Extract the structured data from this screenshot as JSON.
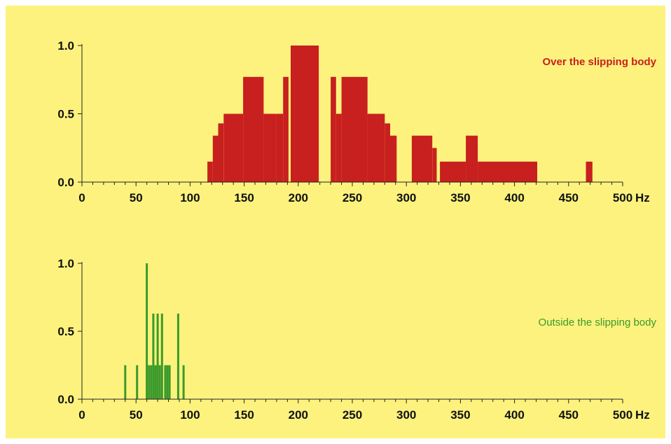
{
  "chart_data": [
    {
      "type": "bar",
      "title": "",
      "xlabel": "",
      "ylabel": "",
      "x_unit": "Hz",
      "xlim": [
        0,
        500
      ],
      "ylim": [
        0,
        1
      ],
      "x_ticks": [
        0,
        50,
        100,
        150,
        200,
        250,
        300,
        350,
        400,
        450,
        500
      ],
      "y_ticks": [
        0.0,
        0.5,
        1.0
      ],
      "grid": false,
      "series": [
        {
          "name": "Over the slipping body",
          "color": "#c8201e",
          "bars": [
            {
              "x0": 116,
              "x1": 121,
              "y": 0.15
            },
            {
              "x0": 121,
              "x1": 126,
              "y": 0.34
            },
            {
              "x0": 126,
              "x1": 131,
              "y": 0.43
            },
            {
              "x0": 131,
              "x1": 149,
              "y": 0.5
            },
            {
              "x0": 149,
              "x1": 168,
              "y": 0.77
            },
            {
              "x0": 168,
              "x1": 180,
              "y": 0.5
            },
            {
              "x0": 180,
              "x1": 186,
              "y": 0.5
            },
            {
              "x0": 186,
              "x1": 191,
              "y": 0.77
            },
            {
              "x0": 193,
              "x1": 219,
              "y": 1.0
            },
            {
              "x0": 230,
              "x1": 235,
              "y": 0.77
            },
            {
              "x0": 235,
              "x1": 240,
              "y": 0.5
            },
            {
              "x0": 240,
              "x1": 264,
              "y": 0.77
            },
            {
              "x0": 264,
              "x1": 280,
              "y": 0.5
            },
            {
              "x0": 280,
              "x1": 285,
              "y": 0.43
            },
            {
              "x0": 285,
              "x1": 291,
              "y": 0.34
            },
            {
              "x0": 305,
              "x1": 324,
              "y": 0.34
            },
            {
              "x0": 324,
              "x1": 328,
              "y": 0.25
            },
            {
              "x0": 331,
              "x1": 355,
              "y": 0.15
            },
            {
              "x0": 355,
              "x1": 366,
              "y": 0.34
            },
            {
              "x0": 366,
              "x1": 421,
              "y": 0.15
            },
            {
              "x0": 466,
              "x1": 472,
              "y": 0.15
            }
          ]
        }
      ]
    },
    {
      "type": "bar",
      "title": "",
      "xlabel": "",
      "ylabel": "",
      "x_unit": "Hz",
      "xlim": [
        0,
        500
      ],
      "ylim": [
        0,
        1
      ],
      "x_ticks": [
        0,
        50,
        100,
        150,
        200,
        250,
        300,
        350,
        400,
        450,
        500
      ],
      "y_ticks": [
        0.0,
        0.5,
        1.0
      ],
      "grid": false,
      "series": [
        {
          "name": "Outside the slipping body",
          "color": "#3a9a2a",
          "bars": [
            {
              "x": 40,
              "y": 0.25
            },
            {
              "x": 51,
              "y": 0.25
            },
            {
              "x": 60,
              "y": 1.0
            },
            {
              "x": 62,
              "y": 0.25
            },
            {
              "x": 64,
              "y": 0.25
            },
            {
              "x": 66,
              "y": 0.63
            },
            {
              "x": 68,
              "y": 0.25
            },
            {
              "x": 70,
              "y": 0.63
            },
            {
              "x": 72,
              "y": 0.25
            },
            {
              "x": 74,
              "y": 0.63
            },
            {
              "x": 77,
              "y": 0.25
            },
            {
              "x": 79,
              "y": 0.25
            },
            {
              "x": 81,
              "y": 0.25
            },
            {
              "x": 89,
              "y": 0.63
            },
            {
              "x": 94,
              "y": 0.25
            }
          ]
        }
      ]
    }
  ]
}
